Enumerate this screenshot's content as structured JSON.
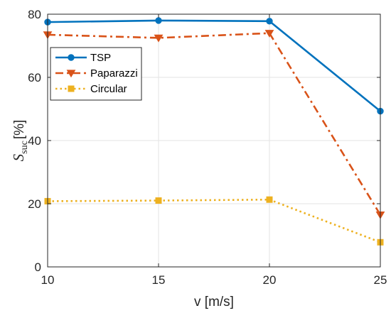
{
  "chart_data": {
    "type": "line",
    "x": [
      10,
      15,
      20,
      25
    ],
    "xlim": [
      10,
      25
    ],
    "ylim": [
      0,
      80
    ],
    "xticks": [
      "10",
      "15",
      "20",
      "25"
    ],
    "yticks": [
      "0",
      "20",
      "40",
      "60",
      "80"
    ],
    "xlabel": "v [m/s]",
    "ylabel": {
      "main": "S",
      "sub": "suc",
      "unit": "[%]"
    },
    "grid": true,
    "legend_position": "upper-left",
    "series": [
      {
        "name": "TSP",
        "values": [
          77.5,
          78.0,
          77.8,
          49.3
        ],
        "color": "#0072BD",
        "marker": "circle",
        "line": "solid"
      },
      {
        "name": "Paparazzi",
        "values": [
          73.5,
          72.5,
          74.0,
          16.5
        ],
        "color": "#D95319",
        "marker": "triangle-down",
        "line": "dashdot"
      },
      {
        "name": "Circular",
        "values": [
          20.8,
          21.0,
          21.3,
          7.8
        ],
        "color": "#EDB120",
        "marker": "square",
        "line": "dotted"
      }
    ]
  }
}
